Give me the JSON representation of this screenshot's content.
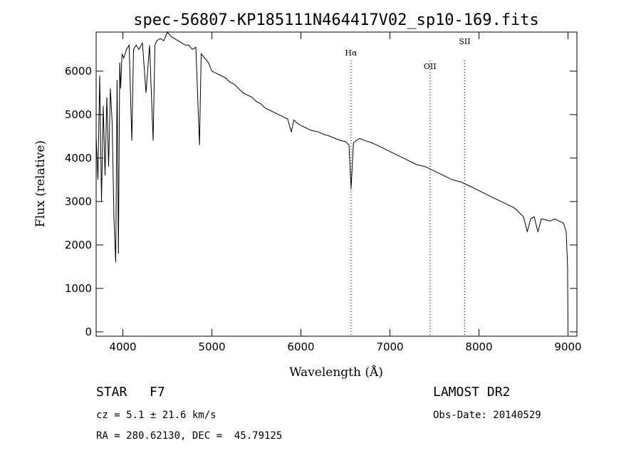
{
  "chart_data": {
    "type": "line",
    "title": "spec-56807-KP185111N464417V02_sp10-169.fits",
    "xlabel": "Wavelength (Å)",
    "ylabel": "Flux (relative)",
    "xlim": [
      3700,
      9100
    ],
    "ylim": [
      -100,
      6900
    ],
    "xticks": [
      4000,
      5000,
      6000,
      7000,
      8000,
      9000
    ],
    "yticks": [
      0,
      1000,
      2000,
      3000,
      4000,
      5000,
      6000
    ],
    "grid": false,
    "series": [
      {
        "x": [
          3700,
          3720,
          3740,
          3760,
          3780,
          3800,
          3820,
          3840,
          3860,
          3880,
          3900,
          3920,
          3935,
          3950,
          3965,
          3975,
          3990,
          4010,
          4040,
          4070,
          4101,
          4120,
          4150,
          4180,
          4220,
          4260,
          4300,
          4340,
          4360,
          4380,
          4420,
          4460,
          4500,
          4540,
          4580,
          4620,
          4660,
          4700,
          4740,
          4780,
          4820,
          4861,
          4880,
          4920,
          4960,
          5000,
          5050,
          5100,
          5150,
          5200,
          5250,
          5300,
          5350,
          5400,
          5450,
          5500,
          5550,
          5600,
          5650,
          5700,
          5750,
          5800,
          5850,
          5893,
          5920,
          5960,
          6000,
          6050,
          6100,
          6150,
          6200,
          6250,
          6300,
          6350,
          6400,
          6450,
          6500,
          6540,
          6563,
          6590,
          6620,
          6660,
          6700,
          6750,
          6800,
          6850,
          6900,
          6950,
          7000,
          7100,
          7200,
          7300,
          7400,
          7500,
          7600,
          7700,
          7800,
          7900,
          8000,
          8100,
          8200,
          8300,
          8400,
          8450,
          8498,
          8520,
          8542,
          8580,
          8620,
          8662,
          8700,
          8750,
          8800,
          8850,
          8900,
          8950,
          8980,
          8995,
          9000
        ],
        "y": [
          4500,
          3500,
          5900,
          3000,
          5200,
          3600,
          5400,
          3800,
          5600,
          4800,
          2600,
          1600,
          5800,
          1800,
          6200,
          5600,
          6400,
          6300,
          6500,
          6600,
          4400,
          6500,
          6600,
          6500,
          6650,
          5500,
          6600,
          4400,
          6600,
          6700,
          6750,
          6700,
          6900,
          6800,
          6750,
          6700,
          6650,
          6600,
          6600,
          6500,
          6550,
          4300,
          6400,
          6300,
          6200,
          6000,
          5950,
          5900,
          5850,
          5750,
          5700,
          5600,
          5500,
          5450,
          5400,
          5300,
          5250,
          5150,
          5100,
          5050,
          5000,
          4950,
          4900,
          4600,
          4880,
          4800,
          4750,
          4700,
          4650,
          4620,
          4600,
          4550,
          4520,
          4480,
          4440,
          4400,
          4380,
          4300,
          3300,
          4350,
          4400,
          4450,
          4420,
          4380,
          4350,
          4300,
          4250,
          4200,
          4150,
          4050,
          3950,
          3850,
          3800,
          3700,
          3600,
          3500,
          3450,
          3350,
          3250,
          3150,
          3050,
          2950,
          2850,
          2750,
          2650,
          2500,
          2300,
          2600,
          2650,
          2300,
          2600,
          2580,
          2550,
          2600,
          2550,
          2500,
          2300,
          1500,
          0
        ]
      }
    ],
    "line_markers": [
      {
        "label": "Hα",
        "x": 6563
      },
      {
        "label": "OII",
        "x": 7450
      },
      {
        "label": "SII",
        "x": 7840
      }
    ]
  },
  "info": {
    "object_class": "STAR",
    "subclass": "F7",
    "survey": "LAMOST DR2",
    "cz": "cz = 5.1 ± 21.6 km/s",
    "obs_date": "Obs-Date: 20140529",
    "coords": "RA = 280.62130, DEC =  45.79125"
  }
}
